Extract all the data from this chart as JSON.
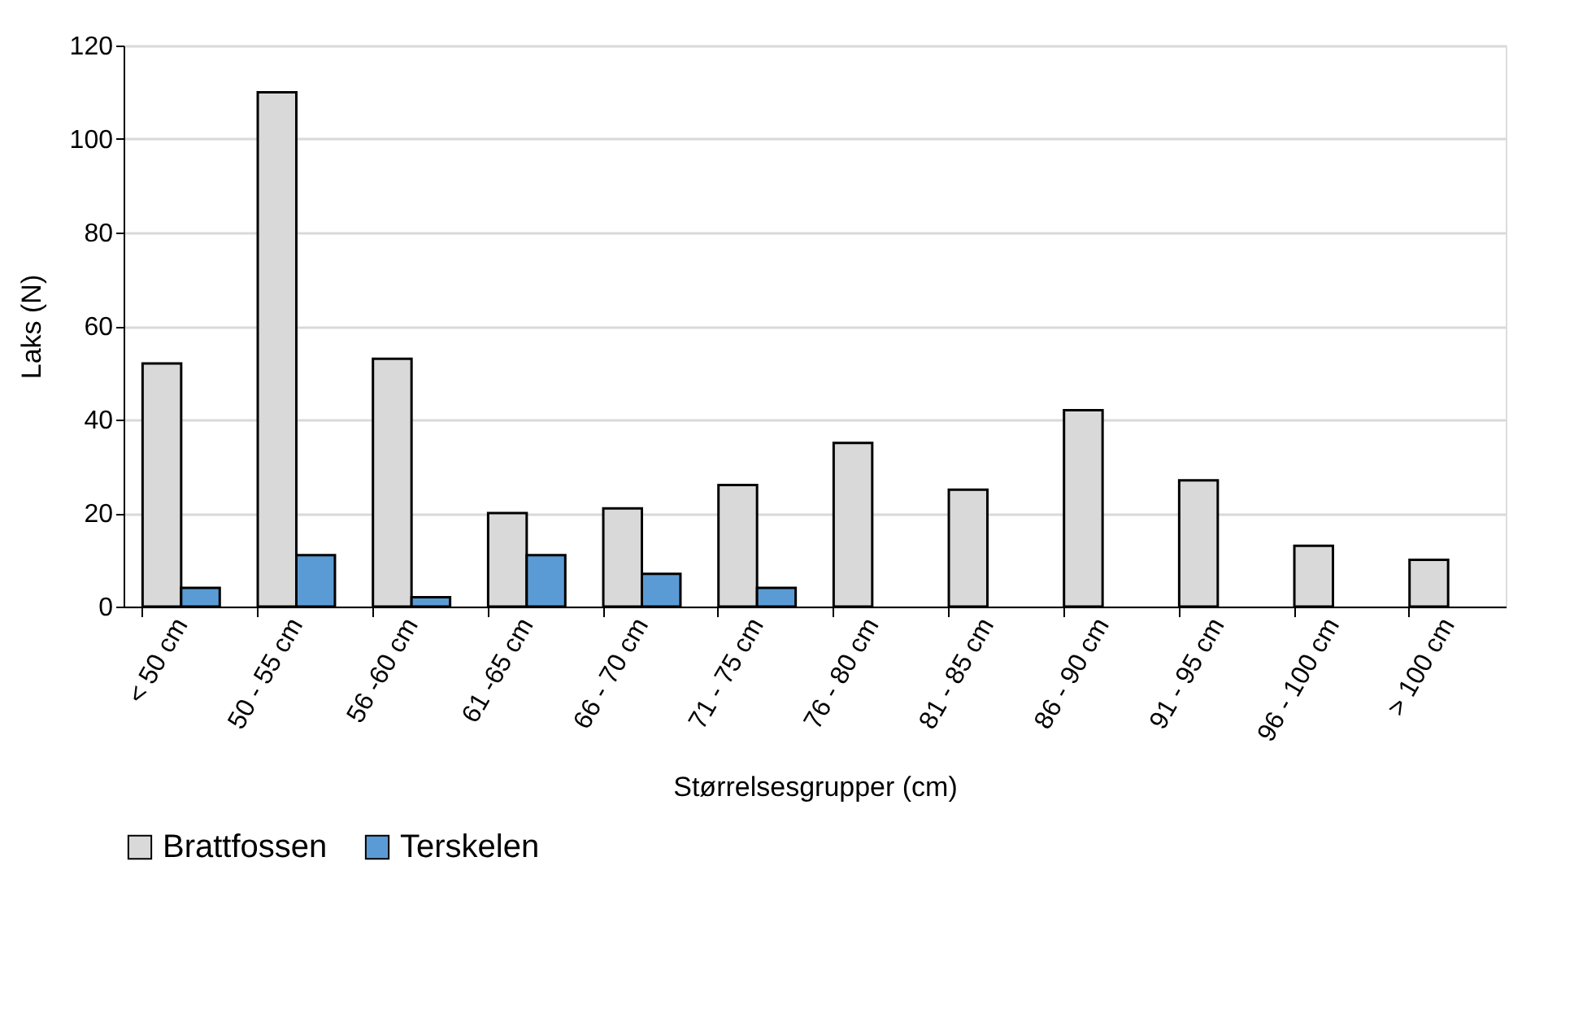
{
  "chart_data": {
    "type": "bar",
    "xlabel": "Størrelsesgrupper (cm)",
    "ylabel": "Laks (N)",
    "categories": [
      "< 50 cm",
      "50 - 55 cm",
      "56 -60 cm",
      "61 -65 cm",
      "66 - 70 cm",
      "71 - 75 cm",
      "76 - 80 cm",
      "81 - 85 cm",
      "86 - 90 cm",
      "91 - 95 cm",
      "96 - 100 cm",
      "> 100 cm"
    ],
    "series": [
      {
        "name": "Brattfossen",
        "color": "#d9d9d9",
        "values": [
          52,
          110,
          53,
          20,
          21,
          26,
          35,
          25,
          42,
          27,
          13,
          10
        ]
      },
      {
        "name": "Terskelen",
        "color": "#5b9bd5",
        "values": [
          4,
          11,
          2,
          11,
          7,
          4,
          null,
          null,
          null,
          null,
          null,
          null
        ]
      }
    ],
    "ylim": [
      0,
      120
    ],
    "yticks": [
      0,
      20,
      40,
      60,
      80,
      100,
      120
    ],
    "grid": "y",
    "legend": "bottom"
  }
}
